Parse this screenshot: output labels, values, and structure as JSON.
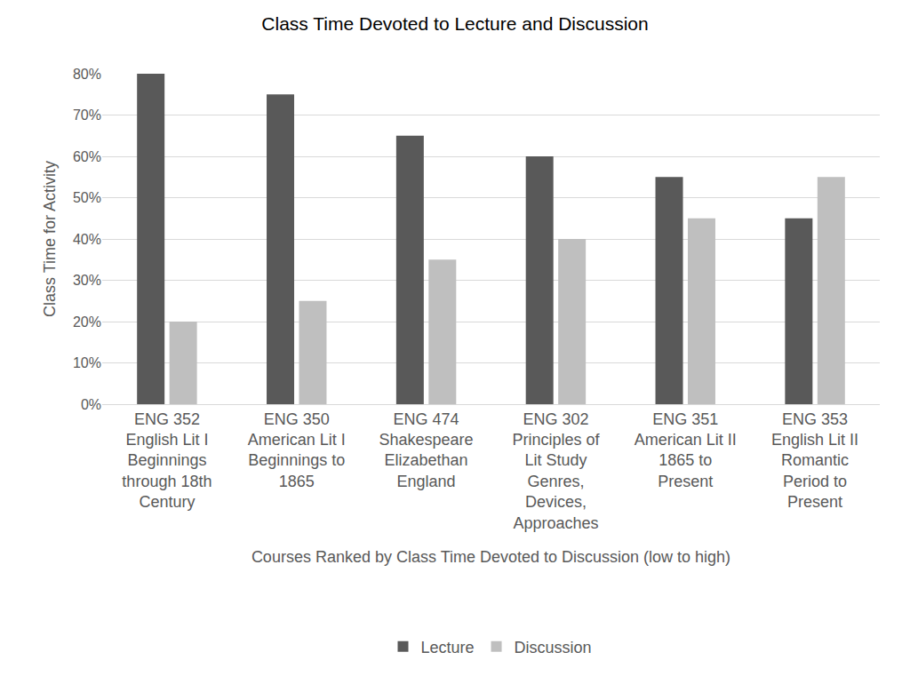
{
  "chart_data": {
    "type": "bar",
    "title": "Class Time Devoted to Lecture and Discussion",
    "x_label": "Courses Ranked by Class Time Devoted to Discussion (low to high)",
    "y_label": "Class Time for Activity",
    "categories": [
      "ENG 352\nEnglish Lit I\nBeginnings\nthrough 18th\nCentury",
      "ENG 350\nAmerican Lit I\nBeginnings to\n1865",
      "ENG 474\nShakespeare\nElizabethan\nEngland",
      "ENG 302\nPrinciples of\nLit Study\nGenres,\nDevices,\nApproaches",
      "ENG 351\nAmerican Lit II\n1865 to\nPresent",
      "ENG 353\nEnglish Lit II\nRomantic\nPeriod to\nPresent"
    ],
    "series": [
      {
        "name": "Lecture",
        "color": "#595959",
        "values": [
          80,
          75,
          65,
          60,
          55,
          45
        ]
      },
      {
        "name": "Discussion",
        "color": "#bfbfbf",
        "values": [
          20,
          25,
          35,
          40,
          45,
          55
        ]
      }
    ],
    "ylim": [
      0,
      80
    ],
    "yticks": [
      {
        "value": 0,
        "label": "0%"
      },
      {
        "value": 10,
        "label": "10%"
      },
      {
        "value": 20,
        "label": "20%"
      },
      {
        "value": 30,
        "label": "30%"
      },
      {
        "value": 40,
        "label": "40%"
      },
      {
        "value": 50,
        "label": "50%"
      },
      {
        "value": 60,
        "label": "60%"
      },
      {
        "value": 70,
        "label": "70%"
      },
      {
        "value": 80,
        "label": "80%"
      }
    ],
    "grid": true,
    "legend": "bottom"
  }
}
